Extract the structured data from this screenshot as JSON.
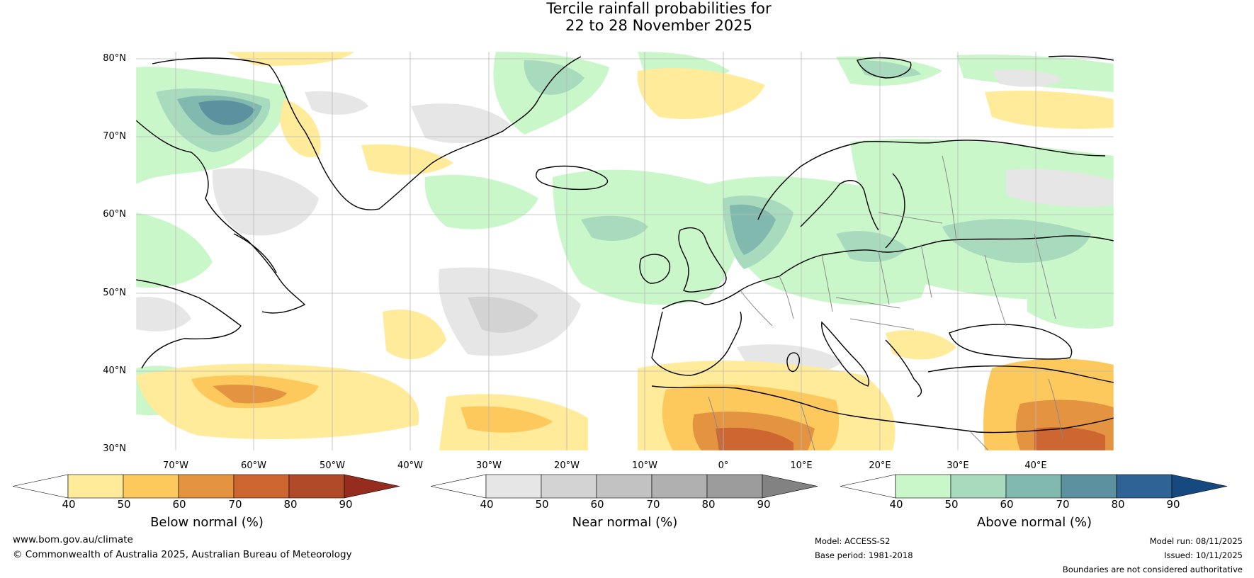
{
  "title": {
    "line1": "Tercile rainfall probabilities for",
    "line2": "22 to 28 November 2025"
  },
  "map": {
    "lat_labels": [
      "80°N",
      "70°N",
      "60°N",
      "50°N",
      "40°N",
      "30°N"
    ],
    "lon_labels": [
      "70°W",
      "60°W",
      "50°W",
      "40°W",
      "30°W",
      "20°W",
      "10°W",
      "0°",
      "10°E",
      "20°E",
      "30°E",
      "40°E"
    ]
  },
  "colorbars": {
    "below": {
      "label": "Below normal (%)",
      "ticks": [
        "40",
        "50",
        "60",
        "70",
        "80",
        "90"
      ],
      "colors": [
        "#ffeb99",
        "#fdc95c",
        "#e49340",
        "#cd6630",
        "#b14a28",
        "#962c1e"
      ]
    },
    "near": {
      "label": "Near normal (%)",
      "ticks": [
        "40",
        "50",
        "60",
        "70",
        "80",
        "90"
      ],
      "colors": [
        "#e6e6e6",
        "#d3d3d3",
        "#c2c2c2",
        "#b0b0b0",
        "#9c9c9c",
        "#828282"
      ]
    },
    "above": {
      "label": "Above normal (%)",
      "ticks": [
        "40",
        "50",
        "60",
        "70",
        "80",
        "90"
      ],
      "colors": [
        "#c9f7c9",
        "#a8dbbd",
        "#82b9af",
        "#5c92a0",
        "#2f6396",
        "#16497f"
      ]
    }
  },
  "footer": {
    "website": "www.bom.gov.au/climate",
    "copyright": "© Commonwealth of Australia 2025, Australian Bureau of Meteorology",
    "model": "Model: ACCESS-S2",
    "base_period": "Base period: 1981-2018",
    "model_run": "Model run: 08/11/2025",
    "issued": "Issued: 10/11/2025",
    "disclaimer": "Boundaries are not considered authoritative"
  }
}
